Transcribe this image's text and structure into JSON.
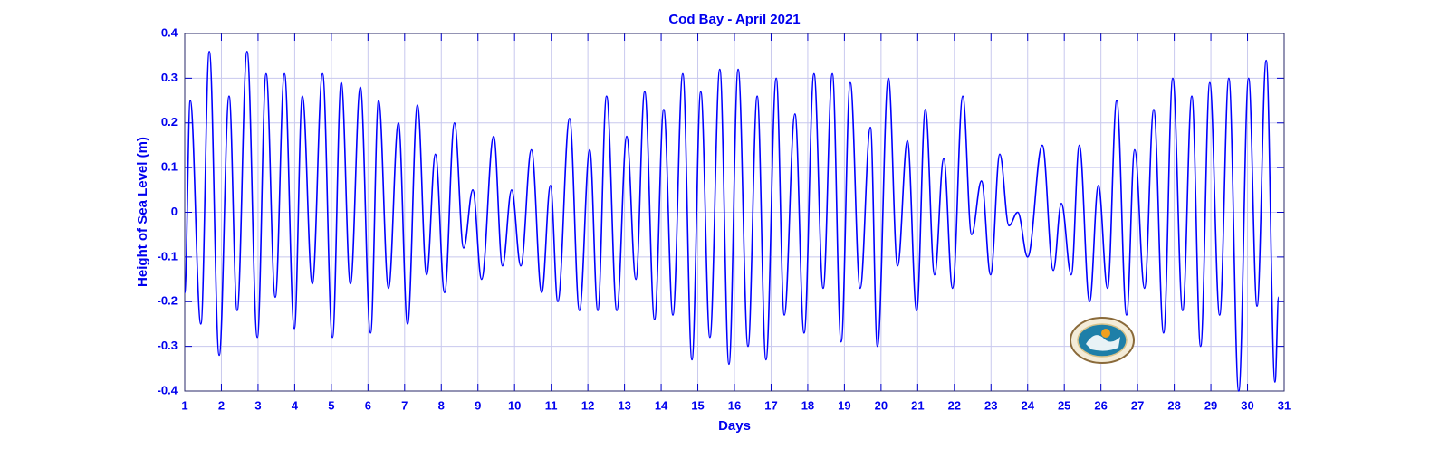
{
  "chart_data": {
    "type": "line",
    "title": "Cod Bay - April 2021",
    "xlabel": "Days",
    "ylabel": "Height of Sea Level (m)",
    "x": [
      1.0,
      1.15,
      1.44,
      1.67,
      1.94,
      2.21,
      2.43,
      2.7,
      2.98,
      3.22,
      3.47,
      3.72,
      3.99,
      4.21,
      4.48,
      4.76,
      5.03,
      5.27,
      5.52,
      5.79,
      6.07,
      6.29,
      6.56,
      6.83,
      7.08,
      7.35,
      7.6,
      7.84,
      8.09,
      8.36,
      8.61,
      8.86,
      9.1,
      9.43,
      9.67,
      9.92,
      10.17,
      10.46,
      10.74,
      10.98,
      11.18,
      11.5,
      11.77,
      12.05,
      12.27,
      12.51,
      12.79,
      13.06,
      13.31,
      13.55,
      13.82,
      14.07,
      14.32,
      14.59,
      14.84,
      15.08,
      15.33,
      15.6,
      15.85,
      16.1,
      16.37,
      16.62,
      16.86,
      17.14,
      17.36,
      17.65,
      17.9,
      18.17,
      18.42,
      18.67,
      18.91,
      19.16,
      19.43,
      19.71,
      19.9,
      20.2,
      20.45,
      20.72,
      20.97,
      21.21,
      21.46,
      21.71,
      21.95,
      22.23,
      22.47,
      22.74,
      22.99,
      23.24,
      23.49,
      23.73,
      24.0,
      24.4,
      24.7,
      24.92,
      25.19,
      25.41,
      25.69,
      25.93,
      26.18,
      26.43,
      26.7,
      26.92,
      27.19,
      27.44,
      27.71,
      27.96,
      28.23,
      28.48,
      28.72,
      28.97,
      29.24,
      29.49,
      29.76,
      30.03,
      30.26,
      30.51,
      30.75,
      30.85
    ],
    "series": [
      {
        "color": "#0000ff",
        "values": [
          -0.18,
          0.25,
          -0.25,
          0.36,
          -0.32,
          0.26,
          -0.22,
          0.36,
          -0.28,
          0.31,
          -0.19,
          0.31,
          -0.26,
          0.26,
          -0.16,
          0.31,
          -0.28,
          0.29,
          -0.16,
          0.28,
          -0.27,
          0.25,
          -0.17,
          0.2,
          -0.25,
          0.24,
          -0.14,
          0.13,
          -0.18,
          0.2,
          -0.08,
          0.05,
          -0.15,
          0.17,
          -0.12,
          0.05,
          -0.12,
          0.14,
          -0.18,
          0.06,
          -0.2,
          0.21,
          -0.22,
          0.14,
          -0.22,
          0.26,
          -0.22,
          0.17,
          -0.15,
          0.27,
          -0.24,
          0.23,
          -0.23,
          0.31,
          -0.33,
          0.27,
          -0.28,
          0.32,
          -0.34,
          0.32,
          -0.3,
          0.26,
          -0.33,
          0.3,
          -0.23,
          0.22,
          -0.27,
          0.31,
          -0.17,
          0.31,
          -0.29,
          0.29,
          -0.17,
          0.19,
          -0.3,
          0.3,
          -0.12,
          0.16,
          -0.22,
          0.23,
          -0.14,
          0.12,
          -0.17,
          0.26,
          -0.05,
          0.07,
          -0.14,
          0.13,
          -0.03,
          0,
          -0.1,
          0.15,
          -0.13,
          0.02,
          -0.14,
          0.15,
          -0.2,
          0.06,
          -0.17,
          0.25,
          -0.23,
          0.14,
          -0.17,
          0.23,
          -0.27,
          0.3,
          -0.22,
          0.26,
          -0.3,
          0.29,
          -0.23,
          0.3,
          -0.4,
          0.3,
          -0.21,
          0.34,
          -0.38,
          -0.19
        ]
      }
    ],
    "xlim": [
      1,
      31
    ],
    "xticks": [
      1,
      2,
      3,
      4,
      5,
      6,
      7,
      8,
      9,
      10,
      11,
      12,
      13,
      14,
      15,
      16,
      17,
      18,
      19,
      20,
      21,
      22,
      23,
      24,
      25,
      26,
      27,
      28,
      29,
      30,
      31
    ],
    "ylim": [
      -0.4,
      0.4
    ],
    "yticks": [
      -0.4,
      -0.3,
      -0.2,
      -0.1,
      0,
      0.1,
      0.2,
      0.3,
      0.4
    ],
    "grid": true
  }
}
